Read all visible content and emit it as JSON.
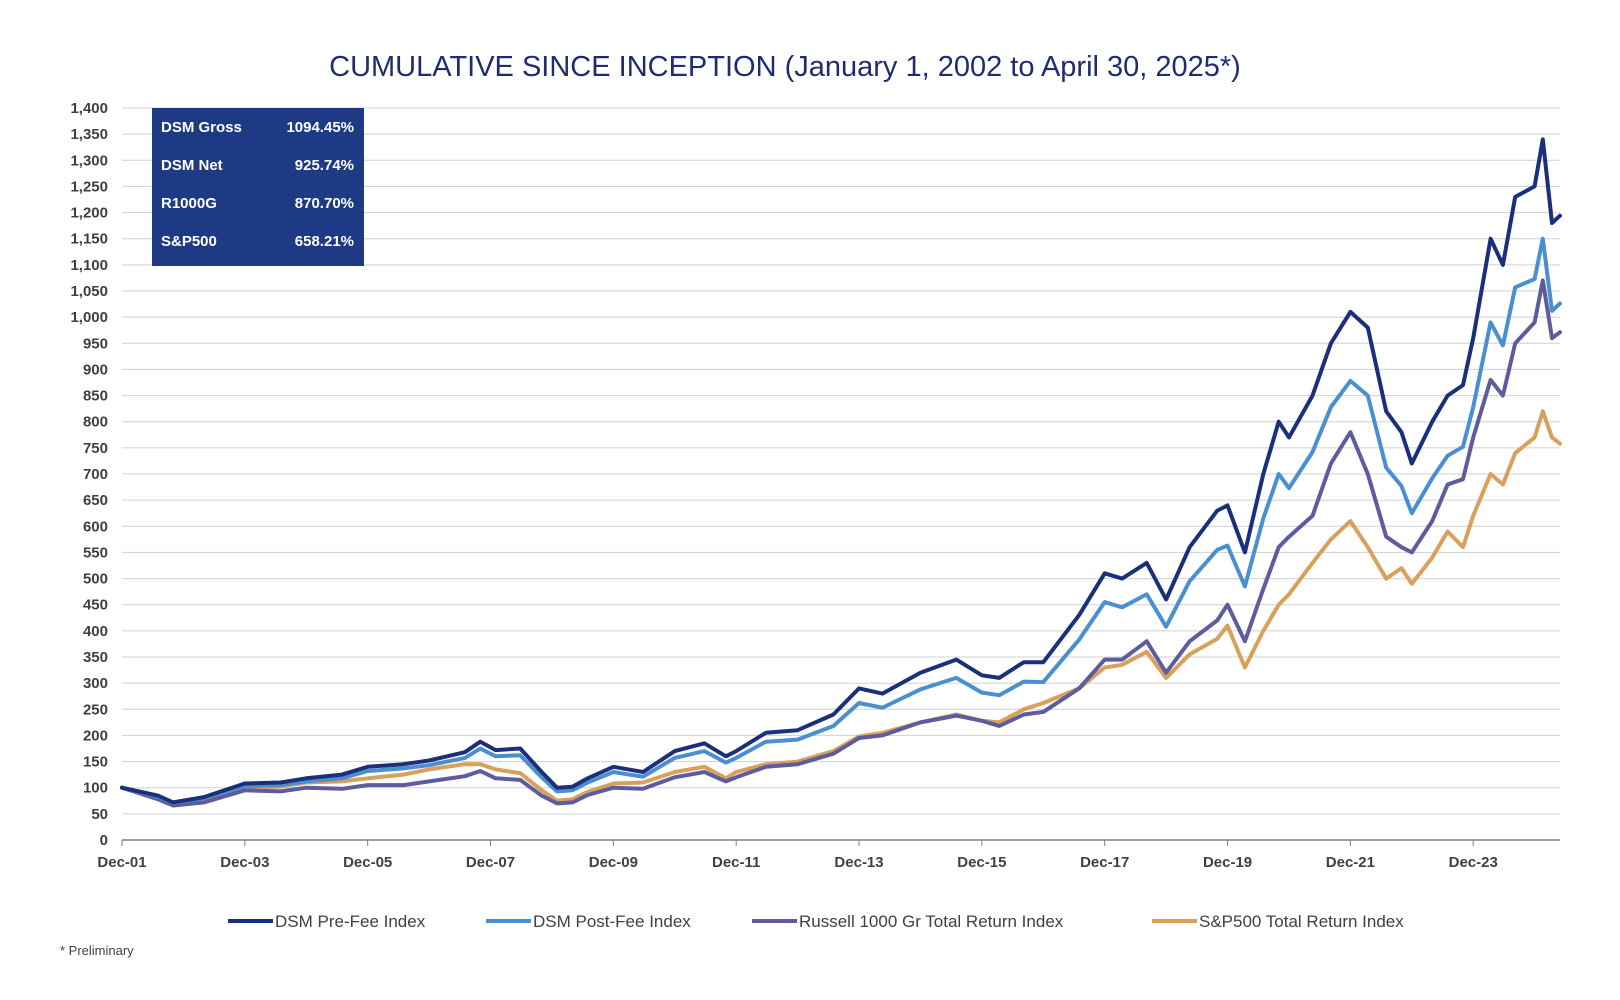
{
  "chart_data": {
    "type": "line",
    "title": "CUMULATIVE SINCE INCEPTION (January 1, 2002 to April 30, 2025*)",
    "xlabel": "",
    "ylabel": "",
    "ylim": [
      0,
      1400
    ],
    "xlim": [
      2001.917,
      2025.33
    ],
    "y_ticks": [
      0,
      50,
      100,
      150,
      200,
      250,
      300,
      350,
      400,
      450,
      500,
      550,
      600,
      650,
      700,
      750,
      800,
      850,
      900,
      950,
      1000,
      1050,
      1100,
      1150,
      1200,
      1250,
      1300,
      1350,
      1400
    ],
    "x_ticks": [
      {
        "label": "Dec-01",
        "x": 2001.917
      },
      {
        "label": "Dec-03",
        "x": 2003.917
      },
      {
        "label": "Dec-05",
        "x": 2005.917
      },
      {
        "label": "Dec-07",
        "x": 2007.917
      },
      {
        "label": "Dec-09",
        "x": 2009.917
      },
      {
        "label": "Dec-11",
        "x": 2011.917
      },
      {
        "label": "Dec-13",
        "x": 2013.917
      },
      {
        "label": "Dec-15",
        "x": 2015.917
      },
      {
        "label": "Dec-17",
        "x": 2017.917
      },
      {
        "label": "Dec-19",
        "x": 2019.917
      },
      {
        "label": "Dec-21",
        "x": 2021.917
      },
      {
        "label": "Dec-23",
        "x": 2023.917
      }
    ],
    "grid": true,
    "legend_position": "bottom",
    "series": [
      {
        "name": "DSM Pre-Fee Index",
        "color": "#1b2f7a",
        "points": [
          [
            2001.917,
            100
          ],
          [
            2002.5,
            85
          ],
          [
            2002.75,
            72
          ],
          [
            2003.25,
            82
          ],
          [
            2003.917,
            108
          ],
          [
            2004.5,
            110
          ],
          [
            2004.917,
            118
          ],
          [
            2005.5,
            125
          ],
          [
            2005.917,
            140
          ],
          [
            2006.5,
            145
          ],
          [
            2006.917,
            152
          ],
          [
            2007.5,
            168
          ],
          [
            2007.75,
            188
          ],
          [
            2008.0,
            172
          ],
          [
            2008.4,
            175
          ],
          [
            2008.75,
            130
          ],
          [
            2009.0,
            100
          ],
          [
            2009.25,
            102
          ],
          [
            2009.5,
            118
          ],
          [
            2009.917,
            140
          ],
          [
            2010.4,
            130
          ],
          [
            2010.917,
            170
          ],
          [
            2011.4,
            185
          ],
          [
            2011.75,
            160
          ],
          [
            2011.917,
            170
          ],
          [
            2012.4,
            205
          ],
          [
            2012.917,
            210
          ],
          [
            2013.5,
            240
          ],
          [
            2013.917,
            290
          ],
          [
            2014.3,
            280
          ],
          [
            2014.917,
            320
          ],
          [
            2015.5,
            345
          ],
          [
            2015.917,
            315
          ],
          [
            2016.2,
            310
          ],
          [
            2016.6,
            340
          ],
          [
            2016.917,
            340
          ],
          [
            2017.5,
            430
          ],
          [
            2017.917,
            510
          ],
          [
            2018.2,
            500
          ],
          [
            2018.6,
            530
          ],
          [
            2018.917,
            460
          ],
          [
            2019.3,
            560
          ],
          [
            2019.75,
            630
          ],
          [
            2019.917,
            640
          ],
          [
            2020.2,
            550
          ],
          [
            2020.5,
            700
          ],
          [
            2020.75,
            800
          ],
          [
            2020.917,
            770
          ],
          [
            2021.3,
            850
          ],
          [
            2021.6,
            950
          ],
          [
            2021.917,
            1010
          ],
          [
            2022.2,
            980
          ],
          [
            2022.5,
            820
          ],
          [
            2022.75,
            780
          ],
          [
            2022.917,
            720
          ],
          [
            2023.25,
            800
          ],
          [
            2023.5,
            850
          ],
          [
            2023.75,
            870
          ],
          [
            2023.917,
            960
          ],
          [
            2024.2,
            1150
          ],
          [
            2024.4,
            1100
          ],
          [
            2024.6,
            1230
          ],
          [
            2024.917,
            1250
          ],
          [
            2025.05,
            1340
          ],
          [
            2025.2,
            1180
          ],
          [
            2025.33,
            1194
          ]
        ]
      },
      {
        "name": "DSM Post-Fee Index",
        "color": "#4a8fd0",
        "points": [
          [
            2001.917,
            100
          ],
          [
            2002.5,
            83
          ],
          [
            2002.75,
            71
          ],
          [
            2003.25,
            80
          ],
          [
            2003.917,
            103
          ],
          [
            2004.5,
            105
          ],
          [
            2004.917,
            112
          ],
          [
            2005.5,
            118
          ],
          [
            2005.917,
            132
          ],
          [
            2006.5,
            137
          ],
          [
            2006.917,
            143
          ],
          [
            2007.5,
            157
          ],
          [
            2007.75,
            175
          ],
          [
            2008.0,
            160
          ],
          [
            2008.4,
            162
          ],
          [
            2008.75,
            120
          ],
          [
            2009.0,
            93
          ],
          [
            2009.25,
            95
          ],
          [
            2009.5,
            110
          ],
          [
            2009.917,
            130
          ],
          [
            2010.4,
            121
          ],
          [
            2010.917,
            157
          ],
          [
            2011.4,
            170
          ],
          [
            2011.75,
            148
          ],
          [
            2011.917,
            157
          ],
          [
            2012.4,
            188
          ],
          [
            2012.917,
            192
          ],
          [
            2013.5,
            218
          ],
          [
            2013.917,
            262
          ],
          [
            2014.3,
            253
          ],
          [
            2014.917,
            288
          ],
          [
            2015.5,
            310
          ],
          [
            2015.917,
            282
          ],
          [
            2016.2,
            277
          ],
          [
            2016.6,
            303
          ],
          [
            2016.917,
            302
          ],
          [
            2017.5,
            383
          ],
          [
            2017.917,
            455
          ],
          [
            2018.2,
            445
          ],
          [
            2018.6,
            470
          ],
          [
            2018.917,
            408
          ],
          [
            2019.3,
            495
          ],
          [
            2019.75,
            555
          ],
          [
            2019.917,
            563
          ],
          [
            2020.2,
            485
          ],
          [
            2020.5,
            615
          ],
          [
            2020.75,
            700
          ],
          [
            2020.917,
            673
          ],
          [
            2021.3,
            742
          ],
          [
            2021.6,
            828
          ],
          [
            2021.917,
            878
          ],
          [
            2022.2,
            850
          ],
          [
            2022.5,
            712
          ],
          [
            2022.75,
            677
          ],
          [
            2022.917,
            625
          ],
          [
            2023.25,
            692
          ],
          [
            2023.5,
            735
          ],
          [
            2023.75,
            752
          ],
          [
            2023.917,
            828
          ],
          [
            2024.2,
            990
          ],
          [
            2024.4,
            946
          ],
          [
            2024.6,
            1057
          ],
          [
            2024.917,
            1073
          ],
          [
            2025.05,
            1150
          ],
          [
            2025.2,
            1012
          ],
          [
            2025.33,
            1026
          ]
        ]
      },
      {
        "name": "Russell 1000 Gr Total Return Index",
        "color": "#5c5c9e",
        "points": [
          [
            2001.917,
            100
          ],
          [
            2002.5,
            78
          ],
          [
            2002.75,
            66
          ],
          [
            2003.25,
            72
          ],
          [
            2003.917,
            95
          ],
          [
            2004.5,
            93
          ],
          [
            2004.917,
            100
          ],
          [
            2005.5,
            98
          ],
          [
            2005.917,
            105
          ],
          [
            2006.5,
            105
          ],
          [
            2006.917,
            112
          ],
          [
            2007.5,
            122
          ],
          [
            2007.75,
            132
          ],
          [
            2008.0,
            118
          ],
          [
            2008.4,
            115
          ],
          [
            2008.75,
            85
          ],
          [
            2009.0,
            70
          ],
          [
            2009.25,
            72
          ],
          [
            2009.5,
            86
          ],
          [
            2009.917,
            100
          ],
          [
            2010.4,
            98
          ],
          [
            2010.917,
            120
          ],
          [
            2011.4,
            130
          ],
          [
            2011.75,
            112
          ],
          [
            2011.917,
            120
          ],
          [
            2012.4,
            140
          ],
          [
            2012.917,
            145
          ],
          [
            2013.5,
            165
          ],
          [
            2013.917,
            195
          ],
          [
            2014.3,
            200
          ],
          [
            2014.917,
            225
          ],
          [
            2015.5,
            238
          ],
          [
            2015.917,
            228
          ],
          [
            2016.2,
            218
          ],
          [
            2016.6,
            240
          ],
          [
            2016.917,
            245
          ],
          [
            2017.5,
            290
          ],
          [
            2017.917,
            345
          ],
          [
            2018.2,
            345
          ],
          [
            2018.6,
            380
          ],
          [
            2018.917,
            320
          ],
          [
            2019.3,
            380
          ],
          [
            2019.75,
            420
          ],
          [
            2019.917,
            450
          ],
          [
            2020.2,
            380
          ],
          [
            2020.5,
            480
          ],
          [
            2020.75,
            560
          ],
          [
            2020.917,
            580
          ],
          [
            2021.3,
            620
          ],
          [
            2021.6,
            720
          ],
          [
            2021.917,
            780
          ],
          [
            2022.2,
            700
          ],
          [
            2022.5,
            580
          ],
          [
            2022.75,
            560
          ],
          [
            2022.917,
            550
          ],
          [
            2023.25,
            610
          ],
          [
            2023.5,
            680
          ],
          [
            2023.75,
            690
          ],
          [
            2023.917,
            770
          ],
          [
            2024.2,
            880
          ],
          [
            2024.4,
            850
          ],
          [
            2024.6,
            950
          ],
          [
            2024.917,
            990
          ],
          [
            2025.05,
            1070
          ],
          [
            2025.2,
            960
          ],
          [
            2025.33,
            971
          ]
        ]
      },
      {
        "name": "S&P500 Total Return Index",
        "color": "#d9a05b",
        "points": [
          [
            2001.917,
            100
          ],
          [
            2002.5,
            82
          ],
          [
            2002.75,
            70
          ],
          [
            2003.25,
            75
          ],
          [
            2003.917,
            100
          ],
          [
            2004.5,
            102
          ],
          [
            2004.917,
            110
          ],
          [
            2005.5,
            112
          ],
          [
            2005.917,
            118
          ],
          [
            2006.5,
            125
          ],
          [
            2006.917,
            135
          ],
          [
            2007.5,
            145
          ],
          [
            2007.75,
            145
          ],
          [
            2008.0,
            135
          ],
          [
            2008.4,
            128
          ],
          [
            2008.75,
            95
          ],
          [
            2009.0,
            75
          ],
          [
            2009.25,
            78
          ],
          [
            2009.5,
            92
          ],
          [
            2009.917,
            108
          ],
          [
            2010.4,
            110
          ],
          [
            2010.917,
            130
          ],
          [
            2011.4,
            140
          ],
          [
            2011.75,
            118
          ],
          [
            2011.917,
            130
          ],
          [
            2012.4,
            145
          ],
          [
            2012.917,
            150
          ],
          [
            2013.5,
            170
          ],
          [
            2013.917,
            198
          ],
          [
            2014.3,
            205
          ],
          [
            2014.917,
            225
          ],
          [
            2015.5,
            240
          ],
          [
            2015.917,
            228
          ],
          [
            2016.2,
            225
          ],
          [
            2016.6,
            250
          ],
          [
            2016.917,
            262
          ],
          [
            2017.5,
            290
          ],
          [
            2017.917,
            330
          ],
          [
            2018.2,
            335
          ],
          [
            2018.6,
            360
          ],
          [
            2018.917,
            310
          ],
          [
            2019.3,
            355
          ],
          [
            2019.75,
            385
          ],
          [
            2019.917,
            410
          ],
          [
            2020.2,
            330
          ],
          [
            2020.5,
            400
          ],
          [
            2020.75,
            450
          ],
          [
            2020.917,
            470
          ],
          [
            2021.3,
            530
          ],
          [
            2021.6,
            575
          ],
          [
            2021.917,
            610
          ],
          [
            2022.2,
            560
          ],
          [
            2022.5,
            500
          ],
          [
            2022.75,
            520
          ],
          [
            2022.917,
            490
          ],
          [
            2023.25,
            540
          ],
          [
            2023.5,
            590
          ],
          [
            2023.75,
            560
          ],
          [
            2023.917,
            620
          ],
          [
            2024.2,
            700
          ],
          [
            2024.4,
            680
          ],
          [
            2024.6,
            740
          ],
          [
            2024.917,
            770
          ],
          [
            2025.05,
            820
          ],
          [
            2025.2,
            770
          ],
          [
            2025.33,
            758
          ]
        ]
      }
    ]
  },
  "summary_box": {
    "rows": [
      {
        "label": "DSM Gross",
        "value": "1094.45%"
      },
      {
        "label": "DSM Net",
        "value": "925.74%"
      },
      {
        "label": "R1000G",
        "value": "870.70%"
      },
      {
        "label": "S&P500",
        "value": "658.21%"
      }
    ]
  },
  "footnote": "* Preliminary",
  "colors": {
    "title": "#1f2d6e",
    "box_bg": "#1f3a84",
    "grid": "#d0d0d0",
    "axis": "#808080"
  }
}
